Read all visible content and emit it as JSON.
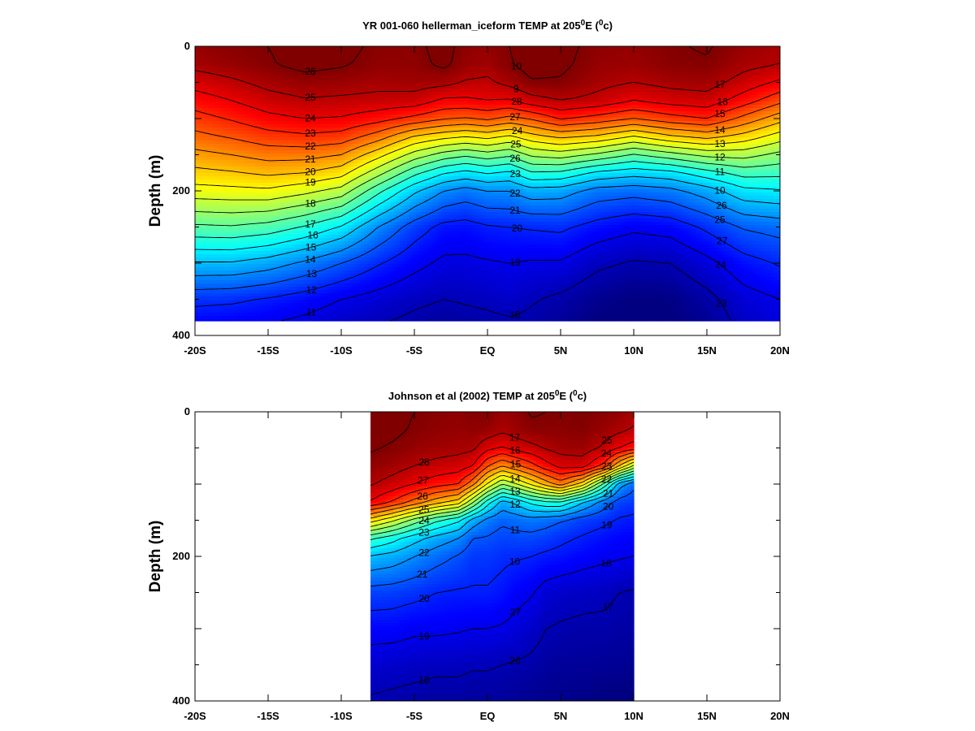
{
  "chart_data": [
    {
      "type": "heatmap",
      "title": "YR 001-060 hellerman_iceform TEMP at 205",
      "title_suffix": "E (",
      "title_units": "c)",
      "title_super": "0",
      "ylabel": "Depth (m)",
      "xlabel": "",
      "xlim": [
        -20,
        20
      ],
      "ylim": [
        400,
        0
      ],
      "x_ticks": [
        {
          "value": -20,
          "label": "-20S"
        },
        {
          "value": -15,
          "label": "-15S"
        },
        {
          "value": -10,
          "label": "-10S"
        },
        {
          "value": -5,
          "label": "-5S"
        },
        {
          "value": 0,
          "label": "EQ"
        },
        {
          "value": 5,
          "label": "5N"
        },
        {
          "value": 10,
          "label": "10N"
        },
        {
          "value": 15,
          "label": "15N"
        },
        {
          "value": 20,
          "label": "20N"
        }
      ],
      "y_ticks": [
        {
          "value": 0,
          "label": "0"
        },
        {
          "value": 200,
          "label": "200"
        },
        {
          "value": 400,
          "label": "400"
        }
      ],
      "data_extent": {
        "lat": [
          -20,
          20
        ],
        "depth": [
          0,
          380
        ]
      },
      "colorscale": "jet",
      "value_range": [
        9,
        28
      ],
      "contour_levels": [
        10,
        11,
        12,
        13,
        14,
        15,
        16,
        17,
        18,
        19,
        20,
        21,
        22,
        23,
        24,
        25,
        26,
        27,
        28
      ],
      "lat": [
        -20,
        -17.5,
        -15,
        -12.5,
        -10,
        -7.5,
        -5,
        -3,
        -1.5,
        0,
        1.5,
        3,
        5,
        7.5,
        10,
        12.5,
        15,
        17.5,
        20
      ],
      "depth": [
        0,
        25,
        50,
        75,
        100,
        125,
        150,
        175,
        200,
        250,
        300,
        350,
        380
      ],
      "temperature": [
        [
          27.6,
          27.8,
          28.0,
          28.4,
          28.3,
          27.8,
          27.8,
          28.3,
          27.7,
          27.6,
          28.0,
          28.5,
          28.3,
          27.7,
          27.6,
          27.9,
          28.1,
          27.5,
          27.2
        ],
        [
          27.3,
          27.6,
          27.9,
          28.3,
          28.1,
          27.7,
          27.7,
          28.2,
          27.6,
          27.4,
          27.9,
          28.4,
          28.2,
          27.6,
          27.5,
          27.8,
          27.9,
          27.3,
          27.0
        ],
        [
          26.4,
          26.8,
          27.3,
          27.6,
          27.5,
          27.3,
          27.4,
          27.3,
          26.9,
          26.8,
          27.3,
          27.9,
          27.9,
          27.3,
          27.0,
          27.3,
          27.4,
          26.6,
          25.8
        ],
        [
          25.5,
          26.0,
          26.6,
          26.9,
          26.8,
          26.7,
          26.6,
          25.8,
          25.8,
          26.0,
          25.9,
          26.6,
          27.0,
          26.7,
          26.0,
          26.4,
          26.6,
          25.5,
          24.3
        ],
        [
          24.6,
          25.1,
          25.7,
          26.0,
          25.9,
          25.4,
          24.7,
          24.1,
          23.9,
          24.2,
          23.7,
          24.1,
          25.1,
          24.6,
          24.0,
          24.6,
          25.0,
          23.7,
          22.4
        ],
        [
          23.7,
          24.1,
          24.6,
          24.8,
          24.6,
          23.5,
          21.9,
          21.3,
          21.0,
          21.3,
          20.8,
          21.6,
          22.2,
          21.8,
          20.9,
          21.8,
          22.3,
          21.6,
          20.5
        ],
        [
          22.7,
          23.0,
          23.4,
          23.4,
          23.0,
          21.4,
          19.6,
          18.6,
          18.2,
          18.6,
          18.2,
          19.2,
          19.5,
          18.8,
          17.9,
          18.6,
          19.3,
          19.4,
          18.7
        ],
        [
          21.7,
          21.9,
          22.2,
          22.0,
          21.4,
          19.4,
          17.3,
          16.1,
          15.7,
          16.1,
          15.8,
          16.9,
          16.8,
          15.8,
          15.4,
          15.7,
          16.6,
          17.4,
          17.3
        ],
        [
          20.6,
          20.7,
          20.8,
          20.3,
          19.6,
          17.3,
          15.2,
          14.0,
          13.6,
          14.0,
          14.0,
          14.6,
          14.5,
          13.6,
          13.4,
          13.7,
          14.5,
          15.7,
          15.9
        ],
        [
          17.8,
          17.9,
          17.6,
          16.9,
          15.9,
          14.0,
          12.5,
          11.7,
          11.6,
          11.9,
          12.0,
          12.1,
          12.2,
          11.6,
          11.2,
          11.4,
          12.2,
          13.1,
          13.4
        ],
        [
          14.9,
          14.9,
          14.5,
          13.8,
          13.0,
          12.1,
          11.3,
          10.8,
          10.8,
          10.9,
          11.0,
          10.9,
          10.9,
          10.2,
          9.9,
          10.0,
          10.7,
          11.6,
          12.1
        ],
        [
          12.3,
          12.2,
          11.9,
          11.5,
          11.0,
          10.6,
          10.2,
          10.0,
          10.1,
          10.2,
          10.4,
          10.1,
          9.8,
          9.3,
          9.0,
          9.1,
          9.7,
          10.6,
          11.0
        ],
        [
          11.4,
          11.3,
          11.1,
          10.8,
          10.4,
          10.1,
          9.8,
          9.6,
          9.7,
          9.8,
          9.9,
          9.8,
          9.5,
          9.0,
          8.9,
          8.9,
          9.4,
          10.3,
          10.8
        ]
      ],
      "contour_labels": [
        "26",
        "25",
        "24",
        "23",
        "22",
        "21",
        "20",
        "19",
        "18",
        "17",
        "16",
        "15",
        "14",
        "13",
        "12",
        "11",
        "10",
        "9",
        "28",
        "27",
        "24",
        "25",
        "26",
        "23",
        "22",
        "21",
        "20",
        "19",
        "18",
        "17",
        "16",
        "15",
        "14",
        "13",
        "12",
        "11",
        "10",
        "26",
        "25",
        "27",
        "24",
        "23",
        "22",
        "21",
        "20",
        "19",
        "18",
        "17",
        "16",
        "15",
        "14",
        "13",
        "12",
        "11",
        "10"
      ]
    },
    {
      "type": "heatmap",
      "title": "Johnson et al (2002) TEMP at 205",
      "title_suffix": "E (",
      "title_units": "c)",
      "title_super": "0",
      "ylabel": "Depth (m)",
      "xlabel": "",
      "xlim": [
        -20,
        20
      ],
      "ylim": [
        400,
        0
      ],
      "x_ticks": [
        {
          "value": -20,
          "label": "-20S"
        },
        {
          "value": -15,
          "label": "-15S"
        },
        {
          "value": -10,
          "label": "-10S"
        },
        {
          "value": -5,
          "label": "-5S"
        },
        {
          "value": 0,
          "label": "EQ"
        },
        {
          "value": 5,
          "label": "5N"
        },
        {
          "value": 10,
          "label": "10N"
        },
        {
          "value": 15,
          "label": "15N"
        },
        {
          "value": 20,
          "label": "20N"
        }
      ],
      "y_ticks": [
        {
          "value": 0,
          "label": "0"
        },
        {
          "value": 200,
          "label": "200"
        },
        {
          "value": 400,
          "label": "400"
        }
      ],
      "data_extent": {
        "lat": [
          -8,
          10
        ],
        "depth": [
          0,
          400
        ]
      },
      "colorscale": "jet",
      "value_range": [
        9,
        28
      ],
      "contour_levels": [
        10,
        11,
        12,
        13,
        14,
        15,
        16,
        17,
        18,
        19,
        20,
        21,
        22,
        23,
        24,
        25,
        26,
        27,
        28
      ],
      "lat": [
        -8,
        -6.5,
        -5,
        -3.5,
        -2,
        -1,
        0,
        1,
        2,
        3,
        4,
        5,
        6.5,
        8,
        9,
        10
      ],
      "depth": [
        0,
        25,
        50,
        75,
        100,
        125,
        150,
        175,
        200,
        250,
        300,
        350,
        400
      ],
      "temperature": [
        [
          28.4,
          28.3,
          28.0,
          27.8,
          27.7,
          27.9,
          27.9,
          27.5,
          27.7,
          28.1,
          28.0,
          27.9,
          28.0,
          27.8,
          27.6,
          27.3
        ],
        [
          28.3,
          28.2,
          27.9,
          27.7,
          27.6,
          27.7,
          27.6,
          27.2,
          27.5,
          27.8,
          27.8,
          27.8,
          27.9,
          27.5,
          27.2,
          26.9
        ],
        [
          28.1,
          27.9,
          27.6,
          27.4,
          27.3,
          27.2,
          26.3,
          25.9,
          26.4,
          26.7,
          27.1,
          27.4,
          27.5,
          26.8,
          26.0,
          25.5
        ],
        [
          27.7,
          27.4,
          27.0,
          26.7,
          26.5,
          26.0,
          24.1,
          23.0,
          23.8,
          24.6,
          25.6,
          26.3,
          26.4,
          24.6,
          22.0,
          19.8
        ],
        [
          27.1,
          26.6,
          26.0,
          25.4,
          25.0,
          23.3,
          20.9,
          19.0,
          20.0,
          21.2,
          22.4,
          23.5,
          21.5,
          17.6,
          14.5,
          13.3
        ],
        [
          25.9,
          24.9,
          23.6,
          22.4,
          21.5,
          19.1,
          16.5,
          14.6,
          15.3,
          16.3,
          16.8,
          16.9,
          15.1,
          13.5,
          12.6,
          12.4
        ],
        [
          21.5,
          20.2,
          18.6,
          17.2,
          16.2,
          14.6,
          13.7,
          13.2,
          13.4,
          13.6,
          13.4,
          13.1,
          12.5,
          12.2,
          11.9,
          11.8
        ],
        [
          17.2,
          16.4,
          15.4,
          14.6,
          14.0,
          13.0,
          12.9,
          12.6,
          12.7,
          12.7,
          12.5,
          12.2,
          11.9,
          11.6,
          11.4,
          11.3
        ],
        [
          14.9,
          14.6,
          14.0,
          13.4,
          12.9,
          12.4,
          12.4,
          12.2,
          12.1,
          12.0,
          11.8,
          11.7,
          11.4,
          11.2,
          11.1,
          11.0
        ],
        [
          12.6,
          12.5,
          12.3,
          12.0,
          11.9,
          11.9,
          11.9,
          11.7,
          11.3,
          11.1,
          10.6,
          10.4,
          10.3,
          10.2,
          10.0,
          9.9
        ],
        [
          11.4,
          11.4,
          11.2,
          11.2,
          11.1,
          11.0,
          11.0,
          10.9,
          10.7,
          10.4,
          10.0,
          9.9,
          9.8,
          9.8,
          9.7,
          9.7
        ],
        [
          10.5,
          10.4,
          10.3,
          10.2,
          10.2,
          10.1,
          10.1,
          10.0,
          9.9,
          9.8,
          9.6,
          9.5,
          9.5,
          9.4,
          9.4,
          9.3
        ],
        [
          9.9,
          9.8,
          9.7,
          9.6,
          9.6,
          9.5,
          9.5,
          9.5,
          9.4,
          9.3,
          9.2,
          9.2,
          9.1,
          9.0,
          8.9,
          8.9
        ]
      ],
      "contour_labels": [
        "28",
        "27",
        "26",
        "25",
        "24",
        "23",
        "22",
        "21",
        "20",
        "19",
        "18",
        "17",
        "16",
        "15",
        "14",
        "13",
        "12",
        "11",
        "10",
        "27",
        "26",
        "25",
        "24",
        "23",
        "22",
        "21",
        "20",
        "19",
        "18",
        "17",
        "16",
        "15",
        "14",
        "13",
        "12",
        "11",
        "10",
        "9",
        "24",
        "26",
        "25",
        "23",
        "22",
        "21",
        "20",
        "19",
        "18",
        "17",
        "16",
        "15",
        "14",
        "13",
        "12",
        "11",
        "10",
        "9"
      ]
    }
  ]
}
